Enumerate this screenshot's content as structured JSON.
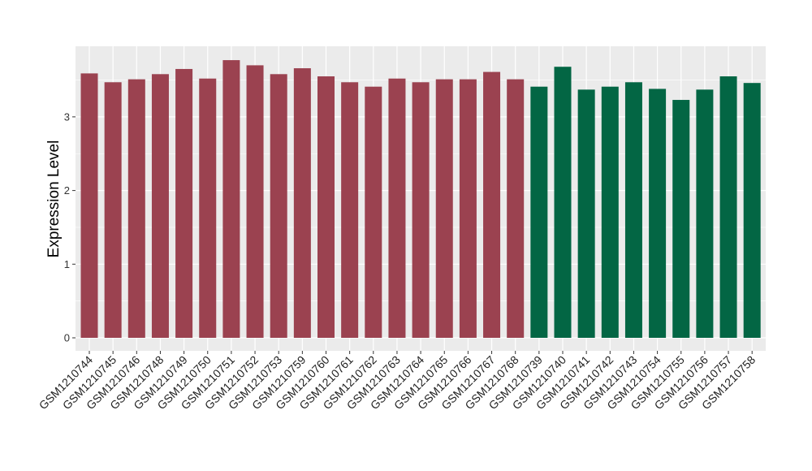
{
  "chart_data": {
    "type": "bar",
    "title": "",
    "xlabel": "",
    "ylabel": "Expression Level",
    "ylim": [
      0,
      3.95
    ],
    "yticks": [
      0,
      1,
      2,
      3
    ],
    "grid": true,
    "colors": {
      "panel": "#ebebeb",
      "grid": "#ffffff",
      "group1": "#9b4250",
      "group2": "#036644"
    },
    "categories": [
      "GSM1210744",
      "GSM1210745",
      "GSM1210746",
      "GSM1210748",
      "GSM1210749",
      "GSM1210750",
      "GSM1210751",
      "GSM1210752",
      "GSM1210753",
      "GSM1210759",
      "GSM1210760",
      "GSM1210761",
      "GSM1210762",
      "GSM1210763",
      "GSM1210764",
      "GSM1210765",
      "GSM1210766",
      "GSM1210767",
      "GSM1210768",
      "GSM1210739",
      "GSM1210740",
      "GSM1210741",
      "GSM1210742",
      "GSM1210743",
      "GSM1210754",
      "GSM1210755",
      "GSM1210756",
      "GSM1210757",
      "GSM1210758"
    ],
    "values": [
      3.59,
      3.47,
      3.51,
      3.58,
      3.65,
      3.52,
      3.77,
      3.7,
      3.58,
      3.66,
      3.55,
      3.47,
      3.41,
      3.52,
      3.47,
      3.51,
      3.51,
      3.61,
      3.51,
      3.41,
      3.68,
      3.37,
      3.41,
      3.47,
      3.38,
      3.23,
      3.37,
      3.55,
      3.46
    ],
    "groups": [
      1,
      1,
      1,
      1,
      1,
      1,
      1,
      1,
      1,
      1,
      1,
      1,
      1,
      1,
      1,
      1,
      1,
      1,
      1,
      2,
      2,
      2,
      2,
      2,
      2,
      2,
      2,
      2,
      2
    ]
  }
}
